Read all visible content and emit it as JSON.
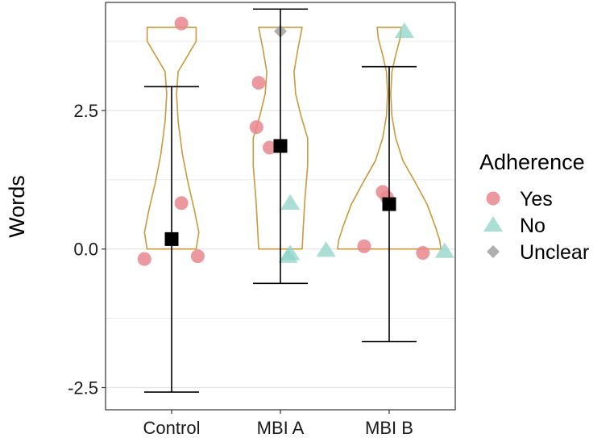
{
  "chart_data": {
    "type": "violin",
    "title": "",
    "xlabel": "",
    "ylabel": "Words",
    "ylim": [
      -2.9,
      4.45
    ],
    "yticks": [
      {
        "value": -2.5,
        "label": "-2.5"
      },
      {
        "value": 0,
        "label": "0.0"
      },
      {
        "value": 2.5,
        "label": "2.5"
      }
    ],
    "minor_gridlines": [
      -1.25,
      1.25,
      3.75
    ],
    "categories": [
      "Control",
      "MBI A",
      "MBI B"
    ],
    "legend": {
      "title": "Adherence",
      "position": "right",
      "entries": [
        {
          "label": "Yes",
          "shape": "circle",
          "color": "#e8878d"
        },
        {
          "label": "No",
          "shape": "triangle",
          "color": "#8fd4c8"
        },
        {
          "label": "Unclear",
          "shape": "diamond",
          "color": "#a6a6a6"
        }
      ]
    },
    "colors": {
      "violin": "#c99a3c",
      "summary": "#000000",
      "grid": "#e4e4e4",
      "panel_border": "#333333"
    },
    "violins": [
      {
        "category": "Control",
        "min": 0,
        "max": 4,
        "profile": [
          [
            0,
            0.45
          ],
          [
            0.3,
            0.5
          ],
          [
            0.7,
            0.42
          ],
          [
            1.2,
            0.3
          ],
          [
            1.7,
            0.2
          ],
          [
            2.3,
            0.12
          ],
          [
            2.8,
            0.09
          ],
          [
            3.2,
            0.12
          ],
          [
            3.5,
            0.3
          ],
          [
            3.75,
            0.45
          ],
          [
            4,
            0.45
          ]
        ]
      },
      {
        "category": "MBI A",
        "min": 0,
        "max": 4,
        "profile": [
          [
            0,
            0.4
          ],
          [
            0.4,
            0.42
          ],
          [
            0.9,
            0.45
          ],
          [
            1.5,
            0.5
          ],
          [
            2.0,
            0.5
          ],
          [
            2.4,
            0.38
          ],
          [
            2.8,
            0.28
          ],
          [
            3.2,
            0.25
          ],
          [
            3.6,
            0.32
          ],
          [
            4,
            0.4
          ]
        ]
      },
      {
        "category": "MBI B",
        "min": 0,
        "max": 4,
        "profile": [
          [
            0,
            0.95
          ],
          [
            0.15,
            0.93
          ],
          [
            0.4,
            0.85
          ],
          [
            0.8,
            0.7
          ],
          [
            1.2,
            0.48
          ],
          [
            1.6,
            0.25
          ],
          [
            2.0,
            0.12
          ],
          [
            2.4,
            0.05
          ],
          [
            2.8,
            0.03
          ],
          [
            3.2,
            0.05
          ],
          [
            3.5,
            0.12
          ],
          [
            3.8,
            0.2
          ],
          [
            4,
            0.22
          ]
        ]
      }
    ],
    "summary": [
      {
        "category": "Control",
        "mean": 0.18,
        "lower": -2.58,
        "upper": 2.93
      },
      {
        "category": "MBI A",
        "mean": 1.86,
        "lower": -0.62,
        "upper": 4.33
      },
      {
        "category": "MBI B",
        "mean": 0.81,
        "lower": -1.67,
        "upper": 3.29
      }
    ],
    "points": [
      {
        "category": "Control",
        "offset": 0.09,
        "y": 4.07,
        "adherence": "Yes"
      },
      {
        "category": "Control",
        "offset": 0.09,
        "y": 0.83,
        "adherence": "Yes"
      },
      {
        "category": "Control",
        "offset": -0.25,
        "y": -0.18,
        "adherence": "Yes"
      },
      {
        "category": "Control",
        "offset": 0.24,
        "y": -0.13,
        "adherence": "Yes"
      },
      {
        "category": "MBI A",
        "offset": -0.2,
        "y": 3.0,
        "adherence": "Yes"
      },
      {
        "category": "MBI A",
        "offset": -0.22,
        "y": 2.2,
        "adherence": "Yes"
      },
      {
        "category": "MBI A",
        "offset": -0.1,
        "y": 1.83,
        "adherence": "Yes"
      },
      {
        "category": "MBI A",
        "offset": 0.0,
        "y": 3.93,
        "adherence": "Unclear"
      },
      {
        "category": "MBI A",
        "offset": 0.09,
        "y": 0.83,
        "adherence": "No"
      },
      {
        "category": "MBI A",
        "offset": 0.07,
        "y": -0.13,
        "adherence": "No"
      },
      {
        "category": "MBI A",
        "offset": 0.09,
        "y": -0.08,
        "adherence": "No"
      },
      {
        "category": "MBI B",
        "offset": -0.06,
        "y": 1.03,
        "adherence": "Yes"
      },
      {
        "category": "MBI B",
        "offset": -0.02,
        "y": 0.93,
        "adherence": "Yes"
      },
      {
        "category": "MBI B",
        "offset": -0.23,
        "y": 0.05,
        "adherence": "Yes"
      },
      {
        "category": "MBI B",
        "offset": 0.31,
        "y": -0.07,
        "adherence": "Yes"
      },
      {
        "category": "MBI B",
        "offset": 0.14,
        "y": 3.93,
        "adherence": "No"
      },
      {
        "category": "MBI B",
        "offset": -0.58,
        "y": -0.02,
        "adherence": "No"
      },
      {
        "category": "MBI B",
        "offset": 0.51,
        "y": -0.04,
        "adherence": "No"
      }
    ]
  }
}
